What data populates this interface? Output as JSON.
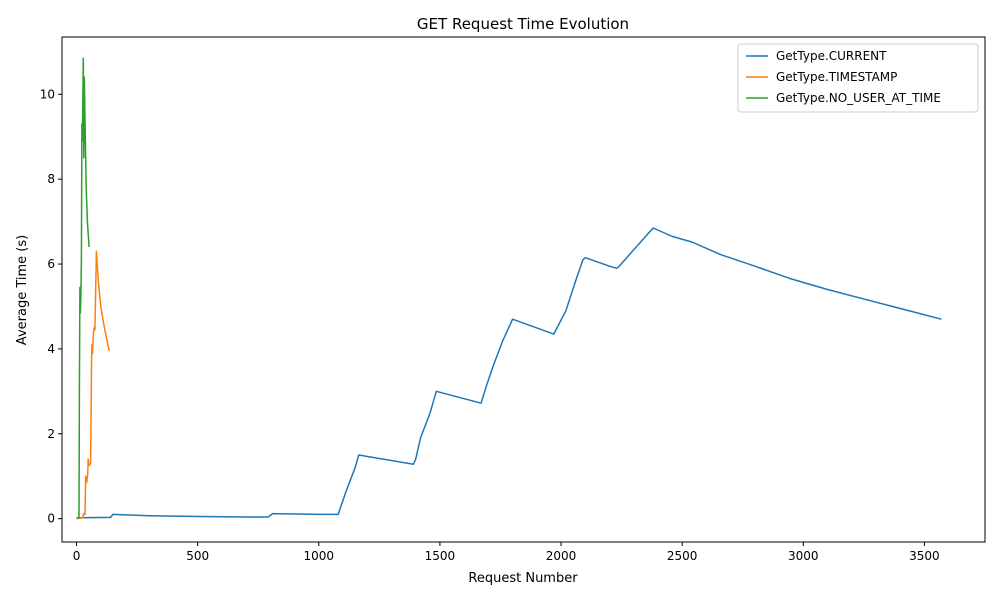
{
  "chart_data": {
    "type": "line",
    "title": "GET Request Time Evolution",
    "xlabel": "Request Number",
    "ylabel": "Average Time (s)",
    "xlim": [
      -60,
      3750
    ],
    "ylim": [
      -0.55,
      11.35
    ],
    "xticks": [
      0,
      500,
      1000,
      1500,
      2000,
      2500,
      3000,
      3500
    ],
    "yticks": [
      0,
      2,
      4,
      6,
      8,
      10
    ],
    "grid": false,
    "legend_position": "top-right",
    "series": [
      {
        "name": "GetType.CURRENT",
        "color": "#1f77b4",
        "points": [
          [
            0,
            0.02
          ],
          [
            140,
            0.03
          ],
          [
            150,
            0.1
          ],
          [
            300,
            0.07
          ],
          [
            500,
            0.05
          ],
          [
            700,
            0.04
          ],
          [
            790,
            0.04
          ],
          [
            810,
            0.12
          ],
          [
            1000,
            0.1
          ],
          [
            1080,
            0.1
          ],
          [
            1110,
            0.6
          ],
          [
            1150,
            1.2
          ],
          [
            1165,
            1.5
          ],
          [
            1390,
            1.28
          ],
          [
            1400,
            1.4
          ],
          [
            1420,
            1.9
          ],
          [
            1460,
            2.5
          ],
          [
            1485,
            3.0
          ],
          [
            1670,
            2.72
          ],
          [
            1690,
            3.1
          ],
          [
            1720,
            3.6
          ],
          [
            1760,
            4.2
          ],
          [
            1800,
            4.7
          ],
          [
            1970,
            4.35
          ],
          [
            2020,
            4.9
          ],
          [
            2060,
            5.6
          ],
          [
            2090,
            6.1
          ],
          [
            2100,
            6.15
          ],
          [
            2200,
            5.95
          ],
          [
            2230,
            5.9
          ],
          [
            2240,
            5.95
          ],
          [
            2380,
            6.85
          ],
          [
            2460,
            6.65
          ],
          [
            2540,
            6.52
          ],
          [
            2660,
            6.22
          ],
          [
            2800,
            5.95
          ],
          [
            2950,
            5.65
          ],
          [
            3100,
            5.4
          ],
          [
            3300,
            5.1
          ],
          [
            3450,
            4.88
          ],
          [
            3570,
            4.7
          ]
        ]
      },
      {
        "name": "GetType.TIMESTAMP",
        "color": "#ff7f0e",
        "points": [
          [
            0,
            0.0
          ],
          [
            25,
            0.02
          ],
          [
            30,
            0.12
          ],
          [
            35,
            0.1
          ],
          [
            38,
            1.0
          ],
          [
            42,
            0.85
          ],
          [
            46,
            1.05
          ],
          [
            48,
            1.4
          ],
          [
            52,
            1.25
          ],
          [
            58,
            1.3
          ],
          [
            62,
            3.8
          ],
          [
            64,
            4.1
          ],
          [
            66,
            3.9
          ],
          [
            70,
            4.4
          ],
          [
            73,
            4.5
          ],
          [
            76,
            4.45
          ],
          [
            82,
            6.3
          ],
          [
            90,
            5.6
          ],
          [
            100,
            5.0
          ],
          [
            115,
            4.5
          ],
          [
            135,
            3.95
          ]
        ]
      },
      {
        "name": "GetType.NO_USER_AT_TIME",
        "color": "#2ca02c",
        "points": [
          [
            10,
            0.0
          ],
          [
            12,
            3.0
          ],
          [
            14,
            5.45
          ],
          [
            16,
            4.85
          ],
          [
            18,
            5.3
          ],
          [
            20,
            6.1
          ],
          [
            22,
            9.3
          ],
          [
            24,
            8.9
          ],
          [
            26,
            9.8
          ],
          [
            28,
            10.85
          ],
          [
            30,
            8.5
          ],
          [
            32,
            10.4
          ],
          [
            36,
            9.0
          ],
          [
            40,
            7.8
          ],
          [
            45,
            7.0
          ],
          [
            52,
            6.4
          ]
        ]
      }
    ]
  }
}
